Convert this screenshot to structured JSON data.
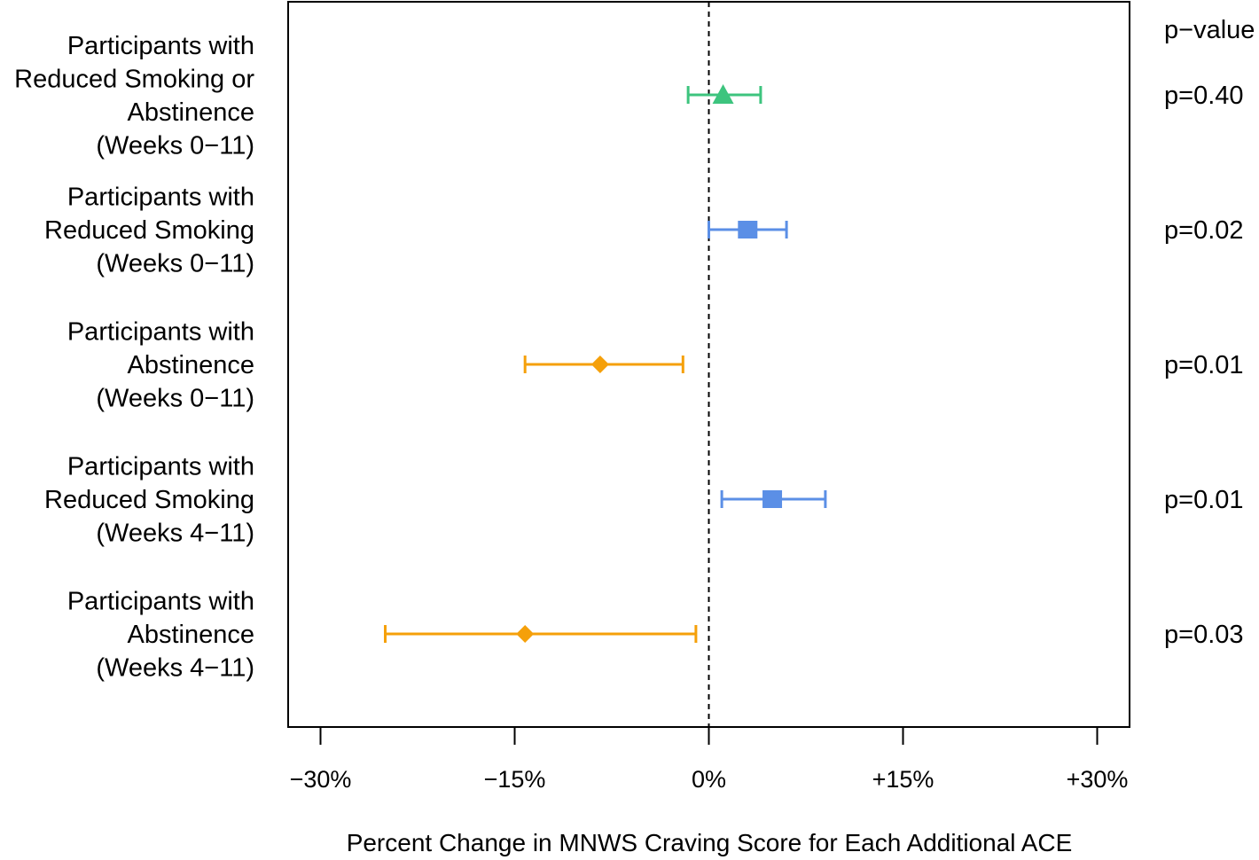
{
  "chart_data": {
    "type": "forest",
    "xlabel": "Percent Change in MNWS Craving Score for Each Additional ACE",
    "pvalue_header": "p−value",
    "xlim": [
      -32.5,
      32.5
    ],
    "ticks": [
      {
        "value": -30,
        "label": "−30%"
      },
      {
        "value": -15,
        "label": "−15%"
      },
      {
        "value": 0,
        "label": "0%"
      },
      {
        "value": 15,
        "label": "+15%"
      },
      {
        "value": 30,
        "label": "+30%"
      }
    ],
    "reference_line": 0,
    "rows": [
      {
        "label_lines": [
          "Participants with",
          "Reduced Smoking or",
          "Abstinence",
          "(Weeks 0−11)"
        ],
        "estimate": 1.1,
        "lower": -1.6,
        "upper": 4.0,
        "p_label": "p=0.40",
        "marker": "triangle",
        "color": "#3dc47e"
      },
      {
        "label_lines": [
          "Participants with",
          "Reduced Smoking",
          "(Weeks 0−11)"
        ],
        "estimate": 3.0,
        "lower": 0.0,
        "upper": 6.0,
        "p_label": "p=0.02",
        "marker": "square",
        "color": "#5b8fe6"
      },
      {
        "label_lines": [
          "Participants with",
          "Abstinence",
          "(Weeks 0−11)"
        ],
        "estimate": -8.4,
        "lower": -14.2,
        "upper": -2.0,
        "p_label": "p=0.01",
        "marker": "diamond",
        "color": "#f5a00a"
      },
      {
        "label_lines": [
          "Participants with",
          "Reduced Smoking",
          "(Weeks 4−11)"
        ],
        "estimate": 4.9,
        "lower": 1.0,
        "upper": 9.0,
        "p_label": "p=0.01",
        "marker": "square",
        "color": "#5b8fe6"
      },
      {
        "label_lines": [
          "Participants with",
          "Abstinence",
          "(Weeks 4−11)"
        ],
        "estimate": -14.2,
        "lower": -25.0,
        "upper": -1.0,
        "p_label": "p=0.03",
        "marker": "diamond",
        "color": "#f5a00a"
      }
    ]
  }
}
